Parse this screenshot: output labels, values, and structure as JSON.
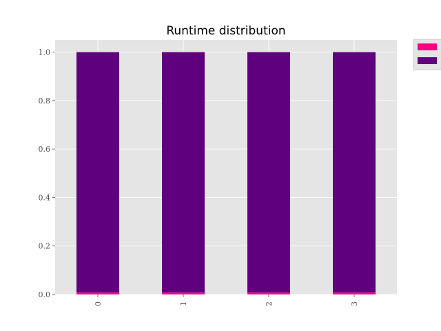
{
  "chart_data": {
    "type": "bar",
    "stacked": true,
    "title": "Runtime distribution",
    "xlabel": "",
    "ylabel": "",
    "categories": [
      "0",
      "1",
      "2",
      "3"
    ],
    "ylim": [
      0,
      1.05
    ],
    "yticks": [
      "0.0",
      "0.2",
      "0.4",
      "0.6",
      "0.8",
      "1.0"
    ],
    "grid": true,
    "legend_position": "outside-top-right",
    "series": [
      {
        "color": "#ff007f",
        "values": [
          0.008,
          0.008,
          0.008,
          0.008
        ]
      },
      {
        "color": "#5f007f",
        "values": [
          0.992,
          0.992,
          0.992,
          0.992
        ]
      }
    ],
    "colors": {
      "plot_background": "#e5e5e5",
      "grid": "#ffffff",
      "tick_label": "#4d4d4d"
    }
  }
}
